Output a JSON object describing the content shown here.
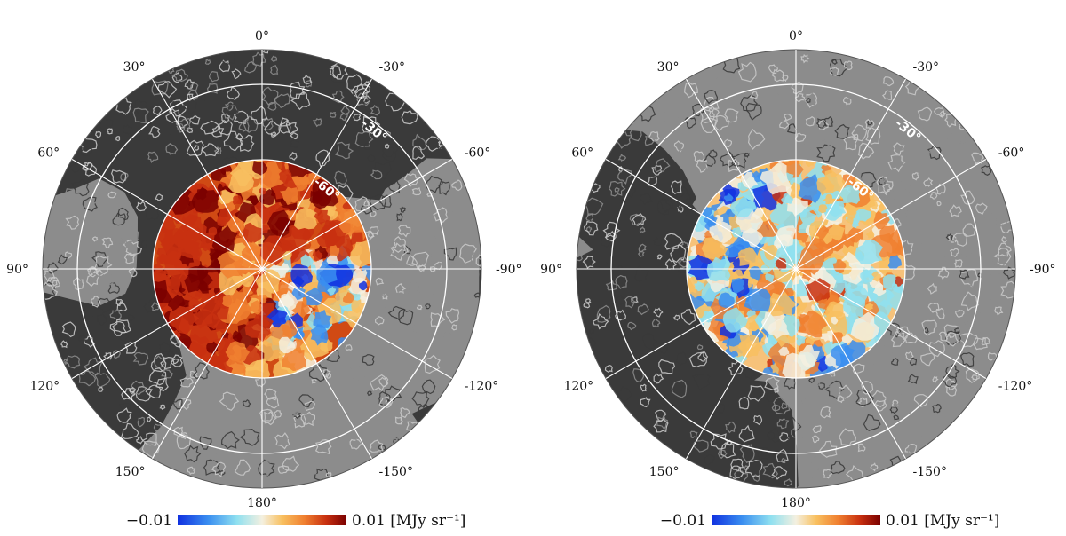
{
  "panels": [
    {
      "id": "left",
      "lon_labels": [
        "0°",
        "30°",
        "60°",
        "90°",
        "120°",
        "150°",
        "180°",
        "-150°",
        "-120°",
        "-90°",
        "-60°",
        "-30°"
      ],
      "lat_labels": [
        "-30°",
        "-60°"
      ],
      "colorbar": {
        "min_label": "−0.01",
        "max_label": "0.01 [MJy sr⁻¹]"
      },
      "map_tone": "warm"
    },
    {
      "id": "right",
      "lon_labels": [
        "0°",
        "30°",
        "60°",
        "90°",
        "120°",
        "150°",
        "180°",
        "-150°",
        "-120°",
        "-90°",
        "-60°",
        "-30°"
      ],
      "lat_labels": [
        "-30°",
        "-60°"
      ],
      "colorbar": {
        "min_label": "−0.01",
        "max_label": "0.01 [MJy sr⁻¹]"
      },
      "map_tone": "mixed"
    }
  ],
  "colors": {
    "dark": "#3a3a3a",
    "mid": "#8c8c8c",
    "light": "#c8c8c8",
    "grid": "#ffffff",
    "colormap": [
      "#1030e0",
      "#3a8ef0",
      "#8fe0f0",
      "#f4f0e0",
      "#f8c060",
      "#f08030",
      "#c83010",
      "#7a0000"
    ]
  }
}
